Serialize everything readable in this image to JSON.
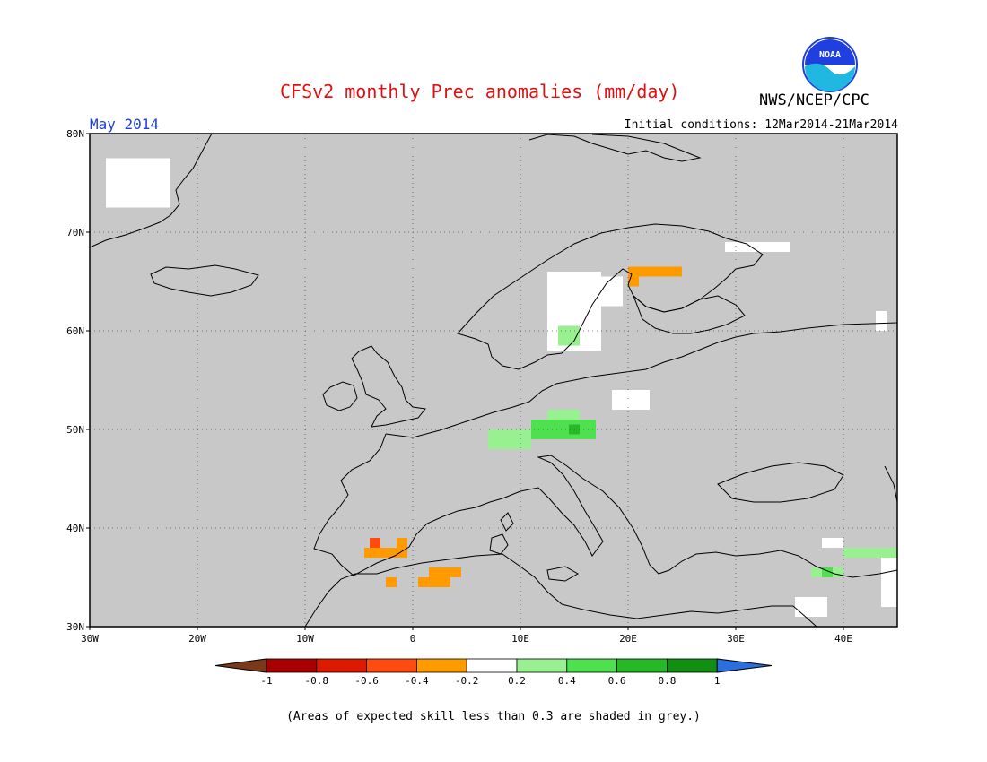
{
  "title": "CFSv2 monthly Prec anomalies (mm/day)",
  "agency": "NWS/NCEP/CPC",
  "logo_text": "NOAA",
  "month": "May 2014",
  "initial_conditions": "Initial conditions: 12Mar2014-21Mar2014",
  "footnote": "(Areas of expected skill less than 0.3 are shaded in grey.)",
  "map": {
    "lon_range": [
      -30,
      45
    ],
    "lat_range": [
      30,
      80
    ],
    "lat_labels": [
      "80N",
      "70N",
      "60N",
      "50N",
      "40N",
      "30N"
    ],
    "lon_labels": [
      "30W",
      "20W",
      "10W",
      "0",
      "10E",
      "20E",
      "30E",
      "40E"
    ],
    "background_color": "#c8c8c8",
    "gridlines": "dotted"
  },
  "colorbar": {
    "tick_labels": [
      "-1",
      "-0.8",
      "-0.6",
      "-0.4",
      "-0.2",
      "0.2",
      "0.4",
      "0.6",
      "0.8",
      "1"
    ],
    "low_arrow_color": "#7a3a1a",
    "high_arrow_color": "#2a6ee0",
    "colors": [
      "#a80000",
      "#dd1a00",
      "#ff4a10",
      "#ff9a00",
      "#ffffff",
      "#98f090",
      "#4ee04e",
      "#26b826",
      "#128f12"
    ]
  },
  "anomaly_regions": [
    {
      "lon": -28.5,
      "lat": 72.5,
      "w": 6.0,
      "h": 5.0,
      "color": "#ffffff"
    },
    {
      "lon": 12.5,
      "lat": 58.0,
      "w": 5.0,
      "h": 8.0,
      "color": "#ffffff"
    },
    {
      "lon": 16.5,
      "lat": 62.5,
      "w": 3.0,
      "h": 3.0,
      "color": "#ffffff"
    },
    {
      "lon": 13.5,
      "lat": 58.5,
      "w": 2.0,
      "h": 2.0,
      "color": "#98f090"
    },
    {
      "lon": 20.0,
      "lat": 65.5,
      "w": 5.0,
      "h": 1.0,
      "color": "#ff9a00"
    },
    {
      "lon": 20.0,
      "lat": 64.5,
      "w": 1.0,
      "h": 1.0,
      "color": "#ff9a00"
    },
    {
      "lon": 29.0,
      "lat": 68.0,
      "w": 6.0,
      "h": 1.0,
      "color": "#ffffff"
    },
    {
      "lon": 43.0,
      "lat": 60.0,
      "w": 1.0,
      "h": 2.0,
      "color": "#ffffff"
    },
    {
      "lon": 18.5,
      "lat": 52.0,
      "w": 3.5,
      "h": 2.0,
      "color": "#ffffff"
    },
    {
      "lon": 12.5,
      "lat": 51.0,
      "w": 3.0,
      "h": 1.0,
      "color": "#98f090"
    },
    {
      "lon": 11.0,
      "lat": 49.0,
      "w": 6.0,
      "h": 2.0,
      "color": "#4ee04e"
    },
    {
      "lon": 14.5,
      "lat": 49.5,
      "w": 1.0,
      "h": 1.0,
      "color": "#26b826"
    },
    {
      "lon": 7.0,
      "lat": 48.0,
      "w": 4.0,
      "h": 2.0,
      "color": "#98f090"
    },
    {
      "lon": -4.5,
      "lat": 37.0,
      "w": 4.0,
      "h": 1.0,
      "color": "#ff9a00"
    },
    {
      "lon": -4.0,
      "lat": 38.0,
      "w": 1.0,
      "h": 1.0,
      "color": "#ff4a10"
    },
    {
      "lon": -1.5,
      "lat": 38.0,
      "w": 1.0,
      "h": 1.0,
      "color": "#ff9a00"
    },
    {
      "lon": 0.5,
      "lat": 34.0,
      "w": 3.0,
      "h": 1.0,
      "color": "#ff9a00"
    },
    {
      "lon": 1.5,
      "lat": 35.0,
      "w": 3.0,
      "h": 1.0,
      "color": "#ff9a00"
    },
    {
      "lon": -2.5,
      "lat": 34.0,
      "w": 1.0,
      "h": 1.0,
      "color": "#ff9a00"
    },
    {
      "lon": 38.0,
      "lat": 38.0,
      "w": 2.0,
      "h": 1.0,
      "color": "#ffffff"
    },
    {
      "lon": 40.0,
      "lat": 37.0,
      "w": 5.0,
      "h": 1.0,
      "color": "#98f090"
    },
    {
      "lon": 37.0,
      "lat": 35.0,
      "w": 3.0,
      "h": 1.0,
      "color": "#98f090"
    },
    {
      "lon": 38.0,
      "lat": 35.0,
      "w": 1.0,
      "h": 1.0,
      "color": "#4ee04e"
    },
    {
      "lon": 43.5,
      "lat": 32.0,
      "w": 1.5,
      "h": 5.0,
      "color": "#ffffff"
    },
    {
      "lon": 35.5,
      "lat": 31.0,
      "w": 3.0,
      "h": 2.0,
      "color": "#ffffff"
    }
  ]
}
